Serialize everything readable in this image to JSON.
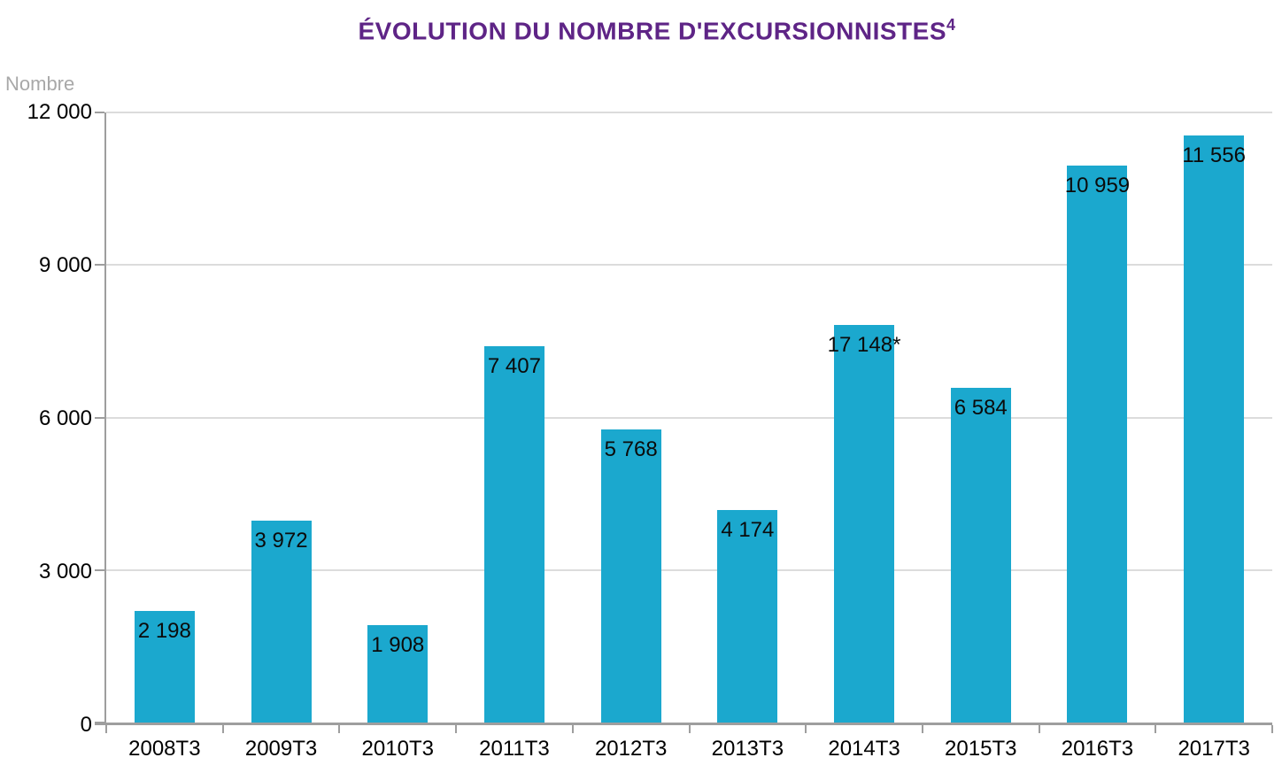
{
  "chart_data": {
    "type": "bar",
    "title": "ÉVOLUTION DU NOMBRE D'EXCURSIONNISTES",
    "title_superscript": "4",
    "title_color": "#5E2486",
    "ylabel": "Nombre",
    "categories": [
      "2008T3",
      "2009T3",
      "2010T3",
      "2011T3",
      "2012T3",
      "2013T3",
      "2014T3",
      "2015T3",
      "2016T3",
      "2017T3"
    ],
    "values": [
      2198,
      3972,
      1908,
      7407,
      5768,
      4174,
      17148,
      6584,
      10959,
      11556
    ],
    "bar_value_labels": [
      "2 198",
      "3 972",
      "1 908",
      "7 407",
      "5 768",
      "4 174",
      "17 148*",
      "6 584",
      "10 959",
      "11 556"
    ],
    "displayed_bar_heights": [
      2198,
      3972,
      1908,
      7407,
      5768,
      4174,
      7820,
      6584,
      10959,
      11556
    ],
    "note": "2014T3 bar is drawn at approx. 7 820 on the axis scale while its data label reads 17 148*",
    "ylim": [
      0,
      12000
    ],
    "yticks": [
      {
        "value": 0,
        "label": "0"
      },
      {
        "value": 3000,
        "label": "3 000"
      },
      {
        "value": 6000,
        "label": "6 000"
      },
      {
        "value": 9000,
        "label": "9 000"
      },
      {
        "value": 12000,
        "label": "12 000"
      }
    ],
    "grid": true,
    "legend_position": "none",
    "bar_color": "#1BA8CE",
    "axis_color": "#9E9E9E",
    "gridline_color": "#DCDCDC"
  }
}
